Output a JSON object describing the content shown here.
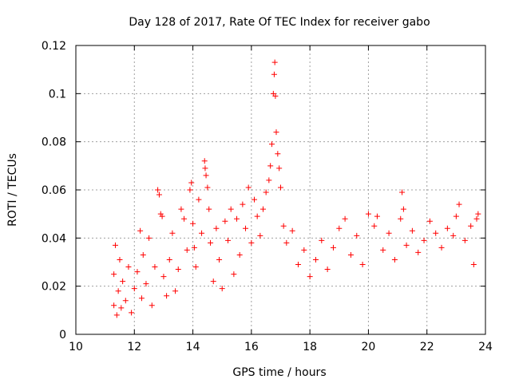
{
  "chart_data": {
    "type": "scatter",
    "title": "Day 128 of 2017, Rate Of TEC Index for receiver gabo",
    "xlabel": "GPS time / hours",
    "ylabel": "ROTI / TECUs",
    "xlim": [
      10,
      24
    ],
    "ylim": [
      0,
      0.12
    ],
    "x_ticks": [
      10,
      12,
      14,
      16,
      18,
      20,
      22,
      24
    ],
    "x_tick_labels": [
      "10",
      "12",
      "14",
      "16",
      "18",
      "20",
      "22",
      "24"
    ],
    "y_ticks": [
      0,
      0.02,
      0.04,
      0.06,
      0.08,
      0.1,
      0.12
    ],
    "y_tick_labels": [
      "0",
      "0.02",
      "0.04",
      "0.06",
      "0.08",
      "0.1",
      "0.12"
    ],
    "grid": true,
    "marker": "+",
    "series_color": "#ff0000",
    "series": [
      {
        "name": "ROTI",
        "points": [
          [
            11.3,
            0.012
          ],
          [
            11.3,
            0.025
          ],
          [
            11.35,
            0.037
          ],
          [
            11.4,
            0.008
          ],
          [
            11.45,
            0.018
          ],
          [
            11.5,
            0.031
          ],
          [
            11.55,
            0.011
          ],
          [
            11.6,
            0.022
          ],
          [
            11.7,
            0.014
          ],
          [
            11.8,
            0.028
          ],
          [
            11.9,
            0.009
          ],
          [
            12.0,
            0.019
          ],
          [
            12.1,
            0.026
          ],
          [
            12.2,
            0.043
          ],
          [
            12.25,
            0.015
          ],
          [
            12.3,
            0.033
          ],
          [
            12.4,
            0.021
          ],
          [
            12.5,
            0.04
          ],
          [
            12.6,
            0.012
          ],
          [
            12.7,
            0.028
          ],
          [
            12.8,
            0.06
          ],
          [
            12.85,
            0.058
          ],
          [
            12.9,
            0.05
          ],
          [
            12.95,
            0.049
          ],
          [
            13.0,
            0.024
          ],
          [
            13.1,
            0.016
          ],
          [
            13.2,
            0.031
          ],
          [
            13.3,
            0.042
          ],
          [
            13.4,
            0.018
          ],
          [
            13.5,
            0.027
          ],
          [
            13.6,
            0.052
          ],
          [
            13.7,
            0.048
          ],
          [
            13.8,
            0.035
          ],
          [
            13.9,
            0.06
          ],
          [
            13.95,
            0.063
          ],
          [
            14.0,
            0.046
          ],
          [
            14.05,
            0.036
          ],
          [
            14.1,
            0.028
          ],
          [
            14.2,
            0.056
          ],
          [
            14.3,
            0.042
          ],
          [
            14.4,
            0.072
          ],
          [
            14.42,
            0.069
          ],
          [
            14.45,
            0.066
          ],
          [
            14.5,
            0.061
          ],
          [
            14.55,
            0.052
          ],
          [
            14.6,
            0.038
          ],
          [
            14.7,
            0.022
          ],
          [
            14.8,
            0.044
          ],
          [
            14.9,
            0.031
          ],
          [
            15.0,
            0.019
          ],
          [
            15.1,
            0.047
          ],
          [
            15.2,
            0.039
          ],
          [
            15.3,
            0.052
          ],
          [
            15.4,
            0.025
          ],
          [
            15.5,
            0.048
          ],
          [
            15.6,
            0.033
          ],
          [
            15.7,
            0.054
          ],
          [
            15.8,
            0.044
          ],
          [
            15.9,
            0.061
          ],
          [
            16.0,
            0.038
          ],
          [
            16.1,
            0.056
          ],
          [
            16.2,
            0.049
          ],
          [
            16.3,
            0.041
          ],
          [
            16.4,
            0.052
          ],
          [
            16.5,
            0.059
          ],
          [
            16.6,
            0.064
          ],
          [
            16.65,
            0.07
          ],
          [
            16.7,
            0.079
          ],
          [
            16.75,
            0.1
          ],
          [
            16.78,
            0.108
          ],
          [
            16.8,
            0.113
          ],
          [
            16.82,
            0.099
          ],
          [
            16.85,
            0.084
          ],
          [
            16.9,
            0.075
          ],
          [
            16.95,
            0.069
          ],
          [
            17.0,
            0.061
          ],
          [
            17.1,
            0.045
          ],
          [
            17.2,
            0.038
          ],
          [
            17.4,
            0.043
          ],
          [
            17.6,
            0.029
          ],
          [
            17.8,
            0.035
          ],
          [
            18.0,
            0.024
          ],
          [
            18.2,
            0.031
          ],
          [
            18.4,
            0.039
          ],
          [
            18.6,
            0.027
          ],
          [
            18.8,
            0.036
          ],
          [
            19.0,
            0.044
          ],
          [
            19.2,
            0.048
          ],
          [
            19.4,
            0.033
          ],
          [
            19.6,
            0.041
          ],
          [
            19.8,
            0.029
          ],
          [
            20.0,
            0.05
          ],
          [
            20.2,
            0.045
          ],
          [
            20.3,
            0.049
          ],
          [
            20.5,
            0.035
          ],
          [
            20.7,
            0.042
          ],
          [
            20.9,
            0.031
          ],
          [
            21.1,
            0.048
          ],
          [
            21.15,
            0.059
          ],
          [
            21.2,
            0.052
          ],
          [
            21.3,
            0.037
          ],
          [
            21.5,
            0.043
          ],
          [
            21.7,
            0.034
          ],
          [
            21.9,
            0.039
          ],
          [
            22.1,
            0.047
          ],
          [
            22.3,
            0.042
          ],
          [
            22.5,
            0.036
          ],
          [
            22.7,
            0.044
          ],
          [
            22.9,
            0.041
          ],
          [
            23.0,
            0.049
          ],
          [
            23.1,
            0.054
          ],
          [
            23.3,
            0.039
          ],
          [
            23.5,
            0.045
          ],
          [
            23.6,
            0.029
          ],
          [
            23.7,
            0.048
          ],
          [
            23.75,
            0.05
          ]
        ]
      }
    ]
  }
}
